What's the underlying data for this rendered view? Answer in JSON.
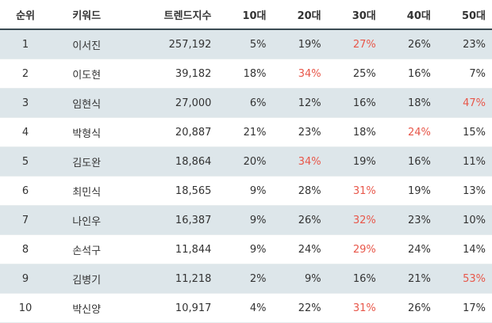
{
  "headers": {
    "rank": "순위",
    "keyword": "키워드",
    "trend": "트렌드지수",
    "age10": "10대",
    "age20": "20대",
    "age30": "30대",
    "age40": "40대",
    "age50": "50대"
  },
  "highlight_color": "#e8574a",
  "row_shade_color": "#dde6ea",
  "rows": [
    {
      "rank": "1",
      "keyword": "이서진",
      "trend": "257,192",
      "a10": "5%",
      "a20": "19%",
      "a30": "27%",
      "a40": "26%",
      "a50": "23%",
      "highlight": "a30"
    },
    {
      "rank": "2",
      "keyword": "이도현",
      "trend": "39,182",
      "a10": "18%",
      "a20": "34%",
      "a30": "25%",
      "a40": "16%",
      "a50": "7%",
      "highlight": "a20"
    },
    {
      "rank": "3",
      "keyword": "임현식",
      "trend": "27,000",
      "a10": "6%",
      "a20": "12%",
      "a30": "16%",
      "a40": "18%",
      "a50": "47%",
      "highlight": "a50"
    },
    {
      "rank": "4",
      "keyword": "박형식",
      "trend": "20,887",
      "a10": "21%",
      "a20": "23%",
      "a30": "18%",
      "a40": "24%",
      "a50": "15%",
      "highlight": "a40"
    },
    {
      "rank": "5",
      "keyword": "김도완",
      "trend": "18,864",
      "a10": "20%",
      "a20": "34%",
      "a30": "19%",
      "a40": "16%",
      "a50": "11%",
      "highlight": "a20"
    },
    {
      "rank": "6",
      "keyword": "최민식",
      "trend": "18,565",
      "a10": "9%",
      "a20": "28%",
      "a30": "31%",
      "a40": "19%",
      "a50": "13%",
      "highlight": "a30"
    },
    {
      "rank": "7",
      "keyword": "나인우",
      "trend": "16,387",
      "a10": "9%",
      "a20": "26%",
      "a30": "32%",
      "a40": "23%",
      "a50": "10%",
      "highlight": "a30"
    },
    {
      "rank": "8",
      "keyword": "손석구",
      "trend": "11,844",
      "a10": "9%",
      "a20": "24%",
      "a30": "29%",
      "a40": "24%",
      "a50": "14%",
      "highlight": "a30"
    },
    {
      "rank": "9",
      "keyword": "김병기",
      "trend": "11,218",
      "a10": "2%",
      "a20": "9%",
      "a30": "16%",
      "a40": "21%",
      "a50": "53%",
      "highlight": "a50"
    },
    {
      "rank": "10",
      "keyword": "박신양",
      "trend": "10,917",
      "a10": "4%",
      "a20": "22%",
      "a30": "31%",
      "a40": "26%",
      "a50": "17%",
      "highlight": "a30"
    }
  ]
}
